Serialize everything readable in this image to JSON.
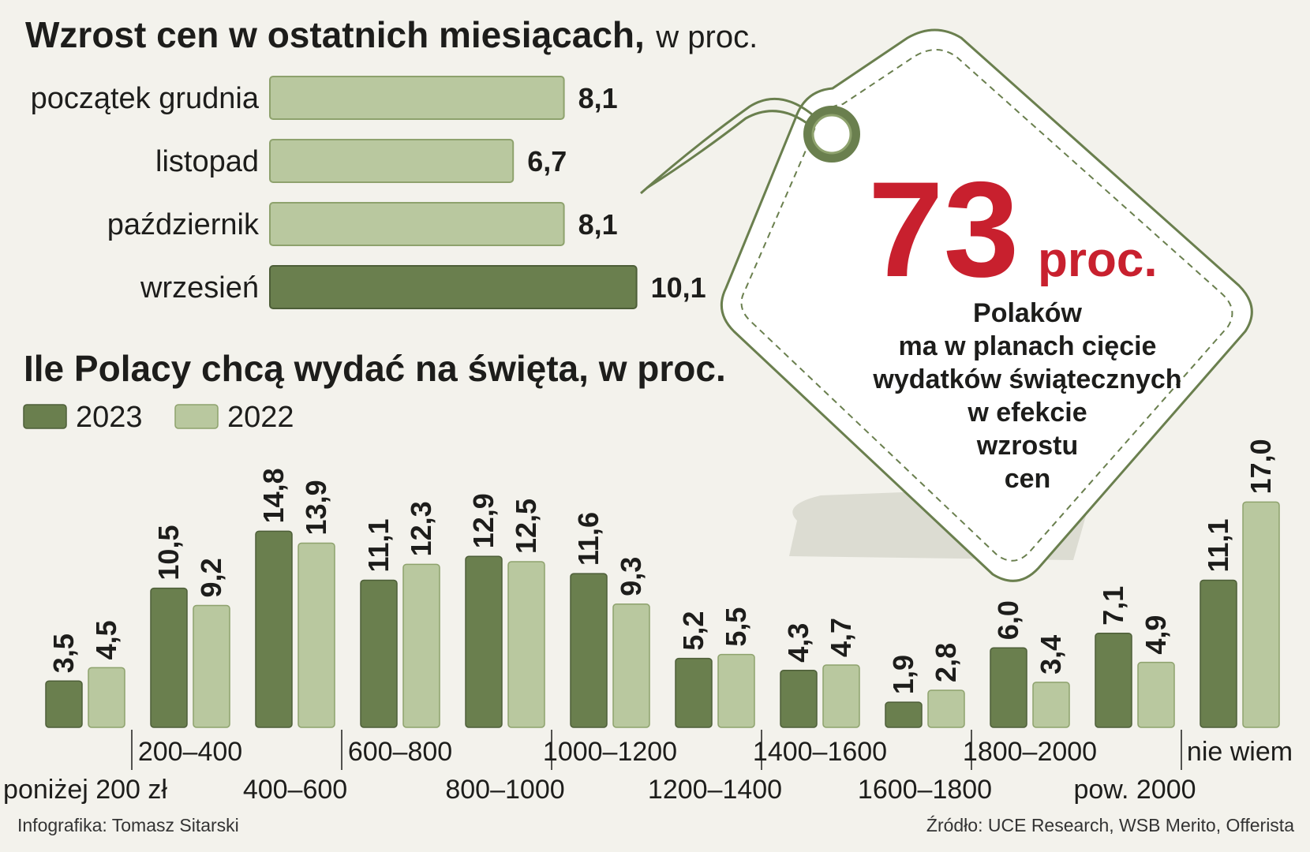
{
  "colors": {
    "dark_green": "#6a7f4e",
    "light_green": "#b9c89f",
    "accent_red": "#c8202e",
    "background": "#f3f2ec"
  },
  "chart_data": [
    {
      "type": "bar",
      "orientation": "horizontal",
      "title": "Wzrost cen w ostatnich miesiącach,",
      "title_suffix": "w proc.",
      "categories": [
        "początek grudnia",
        "listopad",
        "październik",
        "wrzesień"
      ],
      "values": [
        8.1,
        6.7,
        8.1,
        10.1
      ],
      "value_labels": [
        "8,1",
        "6,7",
        "8,1",
        "10,1"
      ],
      "highlight_index": 3
    },
    {
      "type": "bar",
      "title": "Ile Polacy chcą wydać na święta, w proc.",
      "legend_position": "top-left",
      "categories": [
        "poniżej 200 zł",
        "200–400",
        "400–600",
        "600–800",
        "800–1000",
        "1000–1200",
        "1200–1400",
        "1400–1600",
        "1600–1800",
        "1800–2000",
        "pow. 2000",
        "nie wiem"
      ],
      "series": [
        {
          "name": "2023",
          "values": [
            3.5,
            10.5,
            14.8,
            11.1,
            12.9,
            11.6,
            5.2,
            4.3,
            1.9,
            6.0,
            7.1,
            11.1
          ],
          "labels": [
            "3,5",
            "10,5",
            "14,8",
            "11,1",
            "12,9",
            "11,6",
            "5,2",
            "4,3",
            "1,9",
            "6,0",
            "7,1",
            "11,1"
          ]
        },
        {
          "name": "2022",
          "values": [
            4.5,
            9.2,
            13.9,
            12.3,
            12.5,
            9.3,
            5.5,
            4.7,
            2.8,
            3.4,
            4.9,
            17.0
          ],
          "labels": [
            "4,5",
            "9,2",
            "13,9",
            "12,3",
            "12,5",
            "9,3",
            "5,5",
            "4,7",
            "2,8",
            "3,4",
            "4,9",
            "17,0"
          ]
        }
      ]
    }
  ],
  "tag": {
    "big_number": "73",
    "unit": "proc.",
    "lines": [
      "Polaków",
      "ma w planach cięcie",
      "wydatków świątecznych",
      "w efekcie",
      "wzrostu",
      "cen"
    ]
  },
  "footer": {
    "credit": "Infografika: Tomasz Sitarski",
    "source": "Źródło: UCE Research, WSB Merito, Offerista"
  }
}
